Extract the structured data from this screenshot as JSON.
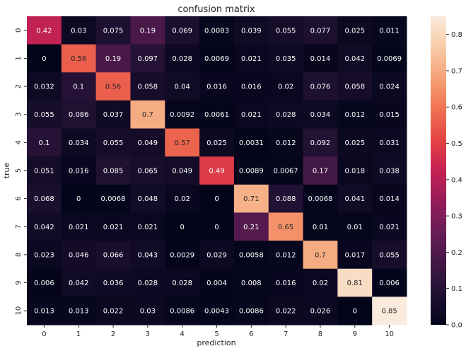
{
  "chart_data": {
    "type": "heatmap",
    "title": "confusion matrix",
    "xlabel": "prediction",
    "ylabel": "true",
    "x_categories": [
      "0",
      "1",
      "2",
      "3",
      "4",
      "5",
      "6",
      "7",
      "8",
      "9",
      "10"
    ],
    "y_categories": [
      "0",
      "1",
      "2",
      "3",
      "4",
      "5",
      "6",
      "7",
      "8",
      "9",
      "10"
    ],
    "values": [
      [
        0.42,
        0.03,
        0.075,
        0.19,
        0.069,
        0.0083,
        0.039,
        0.055,
        0.077,
        0.025,
        0.011
      ],
      [
        0,
        0.56,
        0.19,
        0.097,
        0.028,
        0.0069,
        0.021,
        0.035,
        0.014,
        0.042,
        0.0069
      ],
      [
        0.032,
        0.1,
        0.56,
        0.058,
        0.04,
        0.016,
        0.016,
        0.02,
        0.076,
        0.058,
        0.024
      ],
      [
        0.055,
        0.086,
        0.037,
        0.7,
        0.0092,
        0.0061,
        0.021,
        0.028,
        0.034,
        0.012,
        0.015
      ],
      [
        0.1,
        0.034,
        0.055,
        0.049,
        0.57,
        0.025,
        0.0031,
        0.012,
        0.092,
        0.025,
        0.031
      ],
      [
        0.051,
        0.016,
        0.085,
        0.065,
        0.049,
        0.49,
        0.0089,
        0.0067,
        0.17,
        0.018,
        0.038
      ],
      [
        0.068,
        0,
        0.0068,
        0.048,
        0.02,
        0,
        0.71,
        0.088,
        0.0068,
        0.041,
        0.014
      ],
      [
        0.042,
        0.021,
        0.021,
        0.021,
        0,
        0,
        0.21,
        0.65,
        0.01,
        0.01,
        0.021
      ],
      [
        0.023,
        0.046,
        0.066,
        0.043,
        0.0029,
        0.029,
        0.0058,
        0.012,
        0.7,
        0.017,
        0.055
      ],
      [
        0.006,
        0.042,
        0.036,
        0.028,
        0.028,
        0.004,
        0.008,
        0.016,
        0.02,
        0.81,
        0.006
      ],
      [
        0.013,
        0.013,
        0.022,
        0.03,
        0.0086,
        0.0043,
        0.0086,
        0.022,
        0.026,
        0,
        0.85
      ]
    ],
    "colorbar": {
      "min": 0.0,
      "max": 0.85,
      "ticks": [
        "0.0",
        "0.1",
        "0.2",
        "0.3",
        "0.4",
        "0.5",
        "0.6",
        "0.7",
        "0.8"
      ],
      "colormap": "rocket"
    },
    "annotations": true,
    "grid": false
  }
}
